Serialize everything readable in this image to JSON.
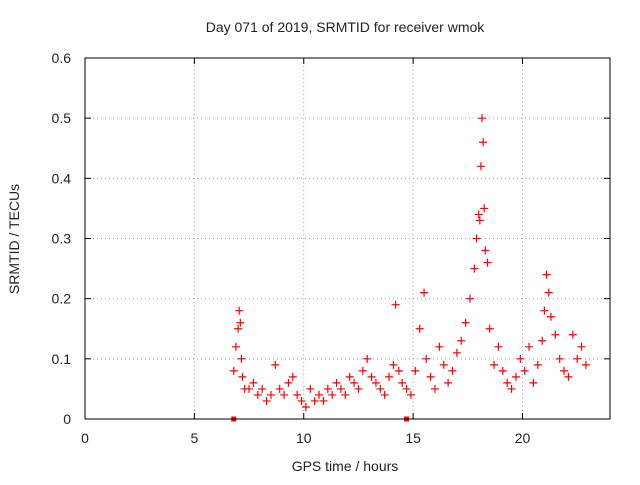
{
  "chart_data": {
    "type": "scatter",
    "title": "Day 071 of 2019, SRMTID for receiver wmok",
    "xlabel": "GPS time / hours",
    "ylabel": "SRMTID / TECUs",
    "xlim": [
      0,
      24
    ],
    "ylim": [
      0,
      0.6
    ],
    "xticks": [
      0,
      5,
      10,
      15,
      20
    ],
    "xtick_labels": [
      "0",
      "5",
      "10",
      "15",
      "20"
    ],
    "yticks": [
      0,
      0.1,
      0.2,
      0.3,
      0.4,
      0.5,
      0.6
    ],
    "ytick_labels": [
      "0",
      "0.1",
      "0.2",
      "0.3",
      "0.4",
      "0.5",
      "0.6"
    ],
    "grid": true,
    "legend": "none",
    "colors": {
      "points": "#ff0000",
      "axis": "#000000",
      "grid": "#a0a0a0",
      "text": "#222222"
    },
    "square_markers": [
      {
        "x": 6.8,
        "y": 0.0
      },
      {
        "x": 14.7,
        "y": 0.0
      }
    ],
    "series": [
      {
        "name": "SRMTID",
        "marker": "plus",
        "x": [
          6.8,
          6.9,
          7.0,
          7.05,
          7.1,
          7.15,
          7.2,
          7.3,
          7.5,
          7.7,
          7.9,
          8.1,
          8.3,
          8.5,
          8.7,
          8.9,
          9.1,
          9.3,
          9.5,
          9.7,
          9.9,
          10.1,
          10.3,
          10.5,
          10.7,
          10.9,
          11.1,
          11.3,
          11.5,
          11.7,
          11.9,
          12.1,
          12.3,
          12.5,
          12.7,
          12.9,
          13.1,
          13.3,
          13.5,
          13.7,
          13.9,
          14.1,
          14.2,
          14.35,
          14.5,
          14.7,
          14.9,
          15.1,
          15.3,
          15.5,
          15.6,
          15.8,
          16.0,
          16.2,
          16.4,
          16.6,
          16.8,
          17.0,
          17.2,
          17.4,
          17.6,
          17.8,
          17.9,
          18.0,
          18.05,
          18.1,
          18.15,
          18.2,
          18.25,
          18.3,
          18.4,
          18.5,
          18.7,
          18.9,
          19.1,
          19.3,
          19.5,
          19.7,
          19.9,
          20.1,
          20.3,
          20.5,
          20.7,
          20.9,
          21.0,
          21.1,
          21.2,
          21.3,
          21.5,
          21.7,
          21.9,
          22.1,
          22.3,
          22.5,
          22.7,
          22.9
        ],
        "y": [
          0.08,
          0.12,
          0.15,
          0.18,
          0.16,
          0.1,
          0.07,
          0.05,
          0.05,
          0.06,
          0.04,
          0.05,
          0.03,
          0.04,
          0.09,
          0.05,
          0.04,
          0.06,
          0.07,
          0.04,
          0.03,
          0.02,
          0.05,
          0.03,
          0.04,
          0.03,
          0.05,
          0.04,
          0.06,
          0.05,
          0.04,
          0.07,
          0.06,
          0.05,
          0.08,
          0.1,
          0.07,
          0.06,
          0.05,
          0.04,
          0.07,
          0.09,
          0.19,
          0.08,
          0.06,
          0.05,
          0.04,
          0.08,
          0.15,
          0.21,
          0.1,
          0.07,
          0.05,
          0.12,
          0.09,
          0.06,
          0.08,
          0.11,
          0.13,
          0.16,
          0.2,
          0.25,
          0.3,
          0.34,
          0.33,
          0.42,
          0.5,
          0.46,
          0.35,
          0.28,
          0.26,
          0.15,
          0.09,
          0.12,
          0.08,
          0.06,
          0.05,
          0.07,
          0.1,
          0.08,
          0.12,
          0.06,
          0.09,
          0.13,
          0.18,
          0.24,
          0.21,
          0.17,
          0.14,
          0.1,
          0.08,
          0.07,
          0.14,
          0.1,
          0.12,
          0.09
        ]
      }
    ]
  }
}
